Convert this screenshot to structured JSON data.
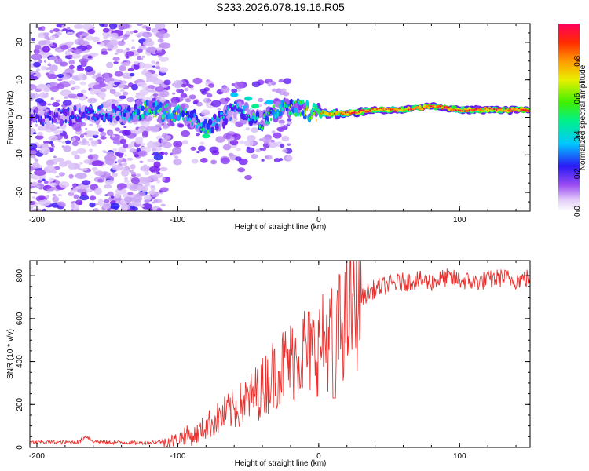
{
  "title": "S233.2026.078.19.16.R05",
  "chart_data": [
    {
      "type": "heatmap",
      "title": "",
      "xlabel": "Height of straight line (km)",
      "ylabel": "Frequency (Hz)",
      "xlim": [
        -205,
        150
      ],
      "ylim": [
        -25,
        25
      ],
      "xticks": [
        -200,
        -100,
        0,
        100
      ],
      "xtick_labels": [
        "-200",
        "-100",
        "0",
        "100"
      ],
      "yticks": [
        -20,
        -10,
        0,
        10,
        20
      ],
      "ytick_labels": [
        "-20",
        "-10",
        "0",
        "10",
        "20"
      ],
      "ridge": {
        "x": [
          -200,
          -180,
          -160,
          -140,
          -120,
          -100,
          -90,
          -80,
          -70,
          -60,
          -50,
          -40,
          -30,
          -20,
          -10,
          0,
          10,
          20,
          40,
          60,
          80,
          100,
          120,
          150
        ],
        "frequency": [
          0,
          0.5,
          1,
          1,
          2,
          1,
          0,
          -3,
          -1,
          2,
          1,
          -1,
          2,
          3,
          2,
          1,
          1,
          1,
          2,
          2,
          3,
          2,
          2,
          2
        ],
        "amplitude": [
          0.3,
          0.35,
          0.4,
          0.45,
          0.6,
          0.65,
          0.5,
          0.55,
          0.45,
          0.45,
          0.5,
          0.55,
          0.6,
          0.6,
          0.7,
          0.8,
          0.85,
          0.95,
          0.92,
          0.9,
          0.93,
          0.9,
          0.92,
          0.95
        ]
      },
      "colorbar": {
        "label": "Normalized spectral amplitude",
        "range": [
          0.0,
          1.0
        ],
        "ticks": [
          0.0,
          0.2,
          0.4,
          0.6,
          0.8
        ],
        "tick_labels": [
          "0.0",
          "0.2",
          "0.4",
          "0.6",
          "0.8"
        ],
        "colors": [
          "#ffffff",
          "#c9a3f5",
          "#7b1ff0",
          "#2a1af5",
          "#00c8ff",
          "#00f08c",
          "#40f000",
          "#e8f000",
          "#ff9a00",
          "#ff2a00",
          "#ff0060"
        ]
      }
    },
    {
      "type": "line",
      "title": "",
      "xlabel": "Height of straight line (km)",
      "ylabel": "SNR (10 * v/v)",
      "xlim": [
        -205,
        150
      ],
      "ylim": [
        0,
        870
      ],
      "xticks": [
        -200,
        -100,
        0,
        100
      ],
      "xtick_labels": [
        "-200",
        "-100",
        "0",
        "100"
      ],
      "yticks": [
        0,
        200,
        400,
        600,
        800
      ],
      "ytick_labels": [
        "0",
        "200",
        "400",
        "600",
        "800"
      ],
      "color": "#e8312e",
      "series": [
        {
          "name": "SNR",
          "x": [
            -205,
            -200,
            -190,
            -180,
            -170,
            -165,
            -160,
            -150,
            -140,
            -130,
            -120,
            -110,
            -100,
            -95,
            -90,
            -85,
            -80,
            -75,
            -70,
            -65,
            -60,
            -55,
            -50,
            -45,
            -40,
            -35,
            -30,
            -25,
            -20,
            -15,
            -10,
            -5,
            0,
            5,
            10,
            15,
            20,
            25,
            30,
            40,
            50,
            60,
            70,
            80,
            90,
            100,
            110,
            120,
            130,
            140,
            150
          ],
          "y": [
            20,
            20,
            22,
            20,
            22,
            50,
            25,
            20,
            20,
            18,
            20,
            25,
            35,
            60,
            50,
            70,
            100,
            120,
            140,
            160,
            180,
            200,
            220,
            250,
            280,
            320,
            360,
            380,
            400,
            430,
            460,
            440,
            470,
            500,
            520,
            560,
            600,
            660,
            700,
            740,
            760,
            770,
            780,
            770,
            790,
            780,
            770,
            780,
            790,
            780,
            790
          ]
        }
      ]
    }
  ]
}
